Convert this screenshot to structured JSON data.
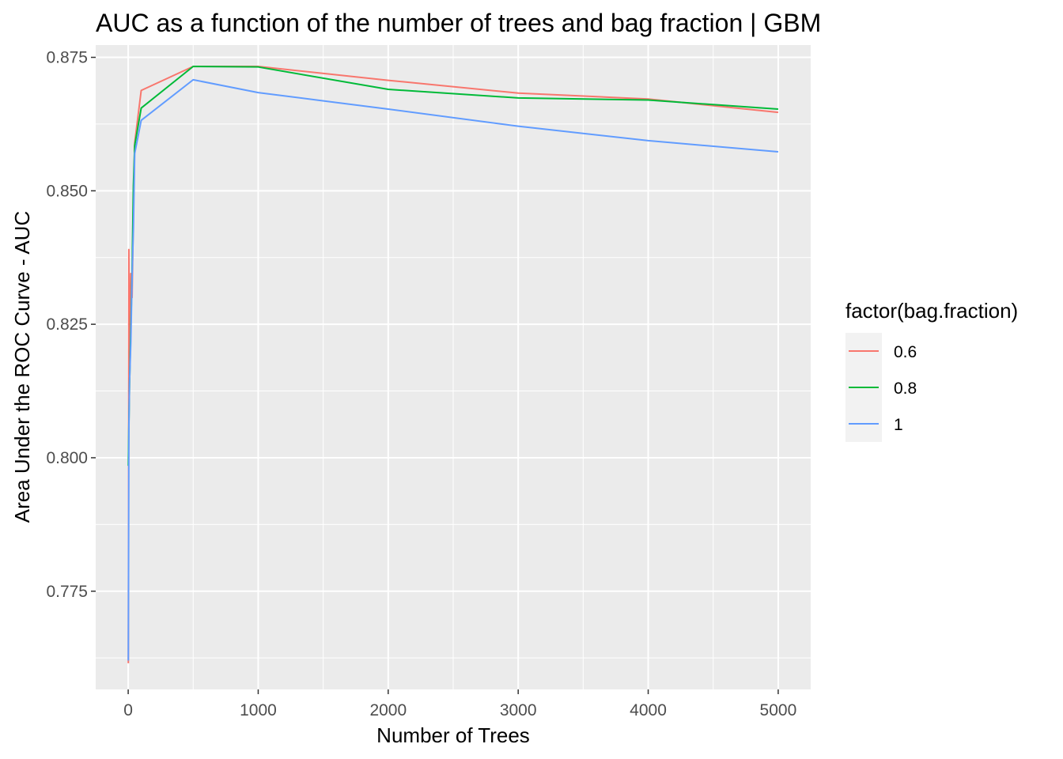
{
  "chart_data": {
    "type": "line",
    "title": "AUC as a function of the number of trees and bag fraction | GBM",
    "xlabel": "Number of Trees",
    "ylabel": "Area Under the ROC Curve - AUC",
    "xlim": [
      -250,
      5250
    ],
    "ylim": [
      0.7566,
      0.8773
    ],
    "x_ticks": [
      0,
      1000,
      2000,
      3000,
      4000,
      5000
    ],
    "x_tick_labels": [
      "0",
      "1000",
      "2000",
      "3000",
      "4000",
      "5000"
    ],
    "y_ticks": [
      0.775,
      0.8,
      0.825,
      0.85,
      0.875
    ],
    "y_tick_labels": [
      "0.775",
      "0.800",
      "0.825",
      "0.850",
      "0.875"
    ],
    "grid": true,
    "legend": {
      "title": "factor(bag.fraction)",
      "position": "right"
    },
    "series": [
      {
        "name": "0.6",
        "color": "#F8766D",
        "x": [
          1,
          5,
          10,
          20,
          30,
          40,
          50,
          100,
          500,
          1000,
          2000,
          3000,
          4000,
          5000
        ],
        "y": [
          0.7615,
          0.839,
          0.8175,
          0.8345,
          0.83,
          0.8465,
          0.859,
          0.8688,
          0.8733,
          0.8733,
          0.8707,
          0.8683,
          0.8672,
          0.8647
        ]
      },
      {
        "name": "0.8",
        "color": "#00BA38",
        "x": [
          1,
          5,
          10,
          20,
          30,
          40,
          50,
          100,
          500,
          1000,
          2000,
          3000,
          4000,
          5000
        ],
        "y": [
          0.7985,
          0.806,
          0.8135,
          0.824,
          0.835,
          0.851,
          0.8585,
          0.8655,
          0.8733,
          0.8732,
          0.869,
          0.8674,
          0.867,
          0.8653
        ]
      },
      {
        "name": "1",
        "color": "#619CFF",
        "x": [
          1,
          5,
          10,
          20,
          30,
          40,
          50,
          100,
          500,
          1000,
          2000,
          3000,
          4000,
          5000
        ],
        "y": [
          0.762,
          0.805,
          0.814,
          0.8215,
          0.834,
          0.843,
          0.857,
          0.8632,
          0.8708,
          0.8684,
          0.8653,
          0.8621,
          0.8594,
          0.8573
        ]
      }
    ]
  }
}
